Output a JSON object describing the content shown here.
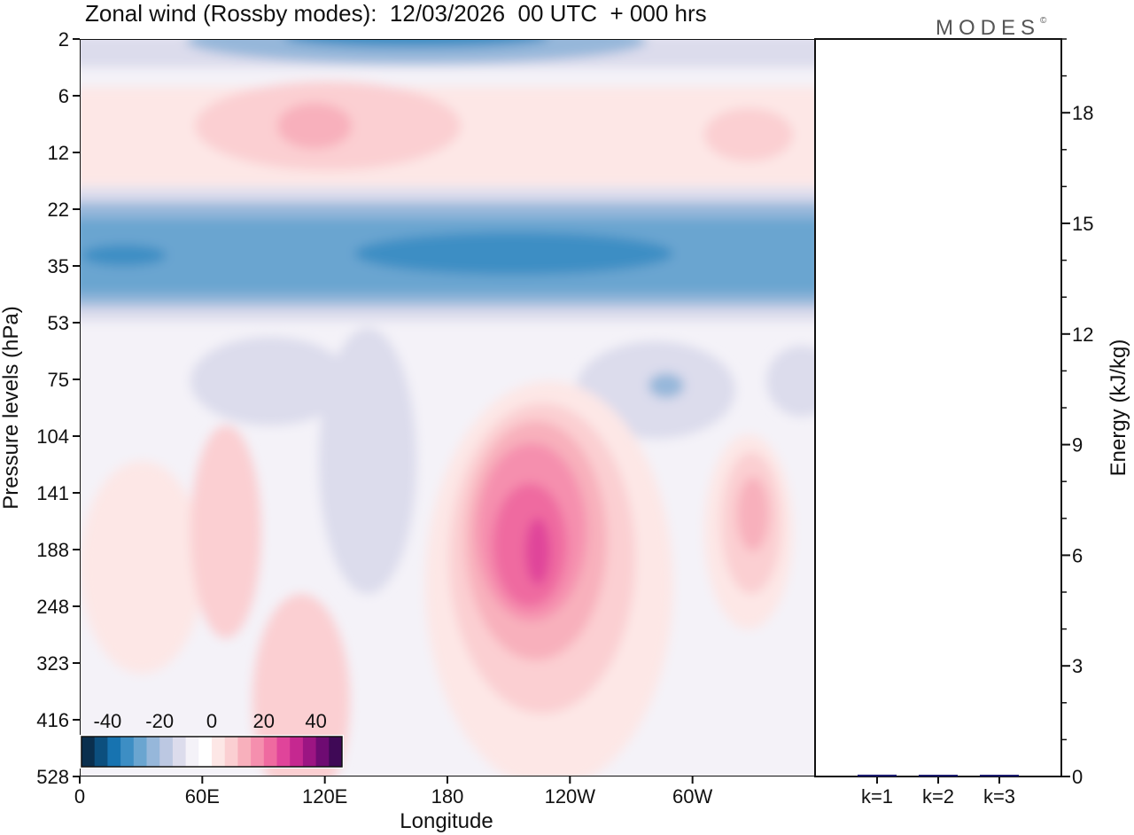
{
  "header": {
    "title": "Zonal wind (Rossby modes):  12/03/2026  00 UTC  + 000 hrs",
    "logo_text": "MODES",
    "logo_mark": "©"
  },
  "chart_data": [
    {
      "type": "heatmap",
      "title": "Zonal wind (Rossby modes):  12/03/2026  00 UTC  + 000 hrs",
      "xlabel": "Longitude",
      "ylabel": "Pressure levels (hPa)",
      "x_tick_labels": [
        "0",
        "60E",
        "120E",
        "180",
        "120W",
        "60W"
      ],
      "y_tick_labels": [
        "2",
        "6",
        "12",
        "22",
        "35",
        "53",
        "75",
        "104",
        "141",
        "188",
        "248",
        "323",
        "416",
        "528"
      ],
      "colorbar": {
        "tick_labels": [
          "-40",
          "-20",
          "0",
          "20",
          "40"
        ],
        "colors": [
          "#0a2f4e",
          "#0c4f7e",
          "#1773b0",
          "#3d8ec4",
          "#6aa5d0",
          "#96b7da",
          "#bcc8e2",
          "#dcdcec",
          "#f4f2f8",
          "#ffffff",
          "#fde7e6",
          "#fbcfd2",
          "#f8b0bc",
          "#f58fae",
          "#ef6aa0",
          "#e0449a",
          "#c52890",
          "#9c1583",
          "#6e0b72",
          "#3f0956"
        ],
        "range": [
          -50,
          50
        ]
      },
      "features": [
        {
          "description": "strong easterly band near 30-40 hPa",
          "sign": "negative",
          "peak": -35
        },
        {
          "description": "easterly jet at top near 2 hPa",
          "sign": "negative",
          "peak": -30
        },
        {
          "description": "westerly maximum near 188 hPa, ~130W",
          "sign": "positive",
          "peak": 35
        },
        {
          "description": "weak westerlies near 6-12 hPa",
          "sign": "positive",
          "peak": 15
        }
      ],
      "colors": {
        "positive": "#e0449a",
        "negative": "#1773b0",
        "neutral": "#ffffff"
      }
    },
    {
      "type": "bar",
      "ylabel": "Energy (kJ/kg)",
      "categories": [
        "k=1",
        "k=2",
        "k=3"
      ],
      "values": [
        0.05,
        0.04,
        0.03
      ],
      "ylim": [
        0,
        20
      ],
      "y_tick_labels": [
        "0",
        "3",
        "6",
        "9",
        "12",
        "15",
        "18"
      ],
      "bar_color": "#1a1a6e"
    }
  ]
}
